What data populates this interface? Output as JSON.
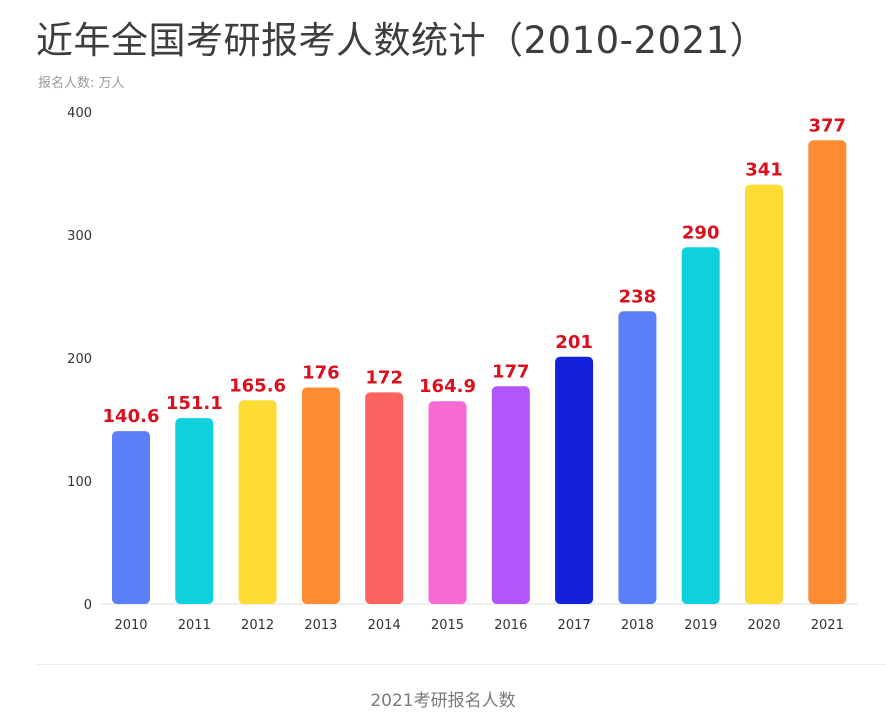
{
  "title": "近年全国考研报考人数统计（2010-2021）",
  "subtitle": "报名人数: 万人",
  "caption": "2021考研报名人数",
  "chart_data": {
    "type": "bar",
    "title": "近年全国考研报考人数统计（2010-2021）",
    "ylabel": "报名人数: 万人",
    "xlabel": "",
    "ylim": [
      0,
      400
    ],
    "yticks": [
      0,
      100,
      200,
      300,
      400
    ],
    "grid": false,
    "categories": [
      "2010",
      "2011",
      "2012",
      "2013",
      "2014",
      "2015",
      "2016",
      "2017",
      "2018",
      "2019",
      "2020",
      "2021"
    ],
    "values": [
      140.6,
      151.1,
      165.6,
      176,
      172,
      164.9,
      177,
      201,
      238,
      290,
      341,
      377
    ],
    "labels": [
      "140.6",
      "151.1",
      "165.6",
      "176",
      "172",
      "164.9",
      "177",
      "201",
      "238",
      "290",
      "341",
      "377"
    ],
    "colors": [
      "#5a7ff7",
      "#0fd1de",
      "#fddd35",
      "#fc8b32",
      "#fb6260",
      "#f76ad2",
      "#b156f8",
      "#1321d8",
      "#5a7ff7",
      "#0fd1de",
      "#fddd35",
      "#fc8b32"
    ],
    "label_color": "#d9101e"
  }
}
